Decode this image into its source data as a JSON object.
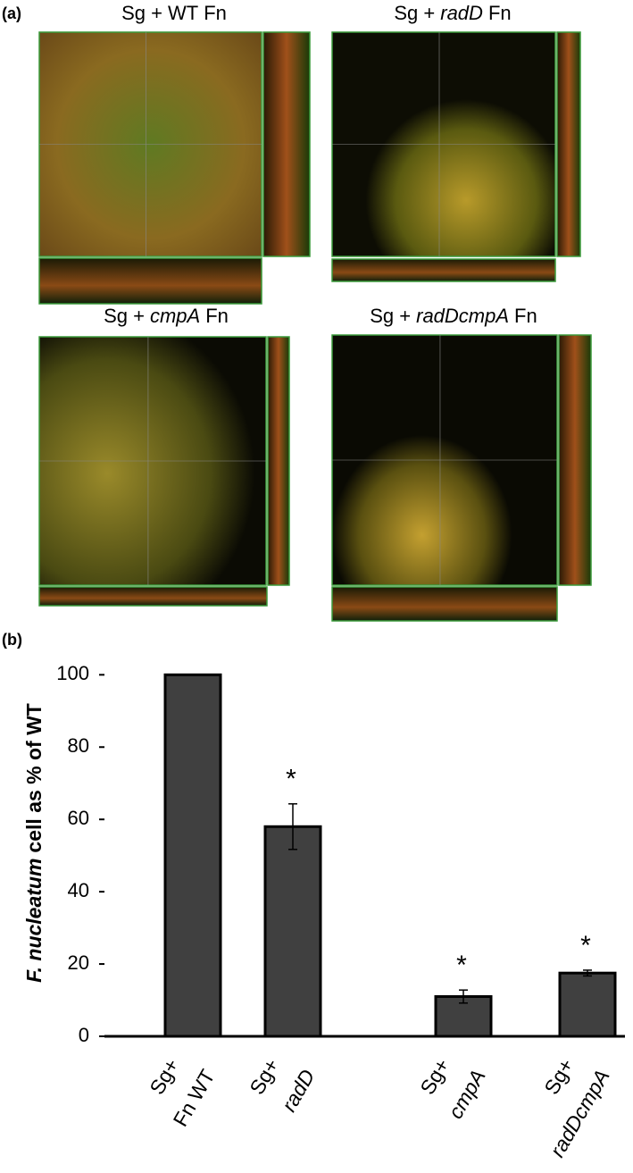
{
  "panel_a": {
    "label": "(a)",
    "images": [
      {
        "title": [
          {
            "text": "Sg +"
          },
          {
            "text": "WT"
          },
          {
            "text": "Fn"
          }
        ]
      },
      {
        "title": [
          {
            "text": "Sg +"
          },
          {
            "text": "radD",
            "italic": true
          },
          {
            "text": "Fn"
          }
        ]
      },
      {
        "title": [
          {
            "text": "Sg +"
          },
          {
            "text": "cmpA",
            "italic": true
          },
          {
            "text": "Fn"
          }
        ]
      },
      {
        "title": [
          {
            "text": "Sg +"
          },
          {
            "text": "radDcmpA",
            "italic": true
          },
          {
            "text": "Fn"
          }
        ]
      }
    ]
  },
  "chart_data": {
    "type": "bar",
    "panel_label": "(b)",
    "ylabel": [
      {
        "text": "F. nucleatum",
        "italic": true
      },
      {
        "text": "cell as % of WT"
      }
    ],
    "categories": [
      [
        "Sg+",
        "Fn WT"
      ],
      [
        "Sg+",
        "radD"
      ],
      [
        "Sg+",
        "cmpA"
      ],
      [
        "Sg+",
        "radDcmpA"
      ]
    ],
    "italic_second_line": [
      false,
      true,
      true,
      true
    ],
    "values": [
      100,
      58,
      11,
      17.5
    ],
    "errors": [
      0,
      6.3,
      1.8,
      0.8
    ],
    "annotations": [
      null,
      "*",
      "*",
      "*"
    ],
    "color": "#404040",
    "ylim": [
      0,
      107
    ],
    "yticks": [
      0,
      20,
      40,
      60,
      80,
      100
    ],
    "grid": false
  }
}
